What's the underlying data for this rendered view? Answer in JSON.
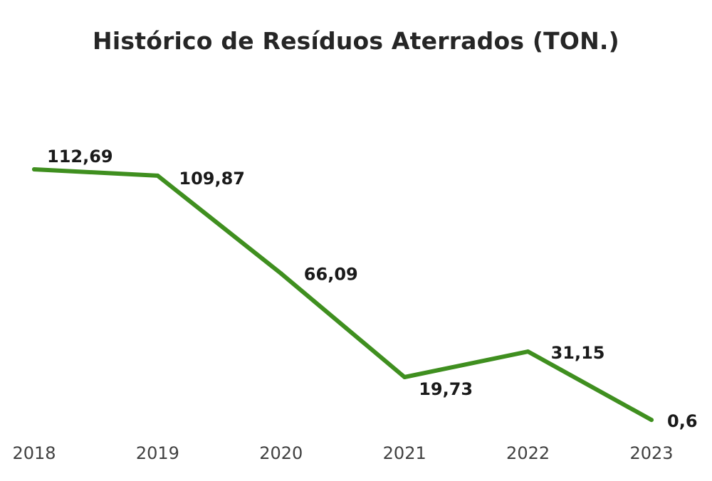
{
  "chart_data": {
    "type": "line",
    "title": "Histórico de Resíduos Aterrados (TON.)",
    "xlabel": "",
    "ylabel": "",
    "categories": [
      "2018",
      "2019",
      "2020",
      "2021",
      "2022",
      "2023"
    ],
    "series": [
      {
        "values": [
          112.69,
          109.87,
          66.09,
          19.73,
          31.15,
          0.6
        ],
        "labels": [
          "112,69",
          "109,87",
          "66,09",
          "19,73",
          "31,15",
          "0,6"
        ]
      }
    ],
    "ylim": [
      0,
      112.69
    ],
    "grid": false,
    "legend": "none",
    "line_color": "#3f8f1f"
  }
}
